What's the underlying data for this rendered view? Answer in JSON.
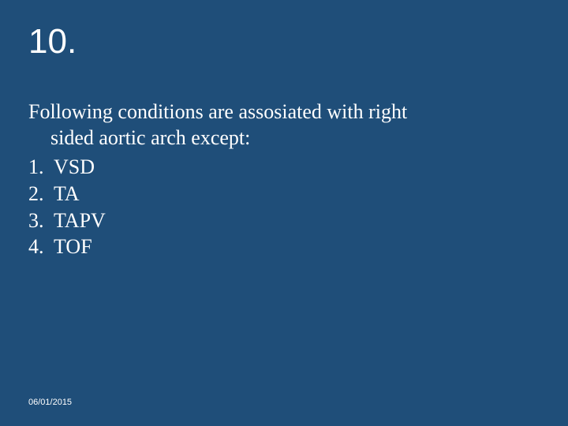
{
  "slide": {
    "background_color": "#1f4e79",
    "text_color": "#ffffff",
    "title": "10.",
    "title_fontsize": 44,
    "body_fontsize": 26,
    "question_line1": "Following conditions are assosiated with right",
    "question_line2": "sided aortic arch except:",
    "options": [
      {
        "num": "1.",
        "text": "VSD"
      },
      {
        "num": "2.",
        "text": "TA"
      },
      {
        "num": "3.",
        "text": "TAPV"
      },
      {
        "num": "4.",
        "text": "TOF"
      }
    ],
    "date": "06/01/2015",
    "date_fontsize": 11
  }
}
